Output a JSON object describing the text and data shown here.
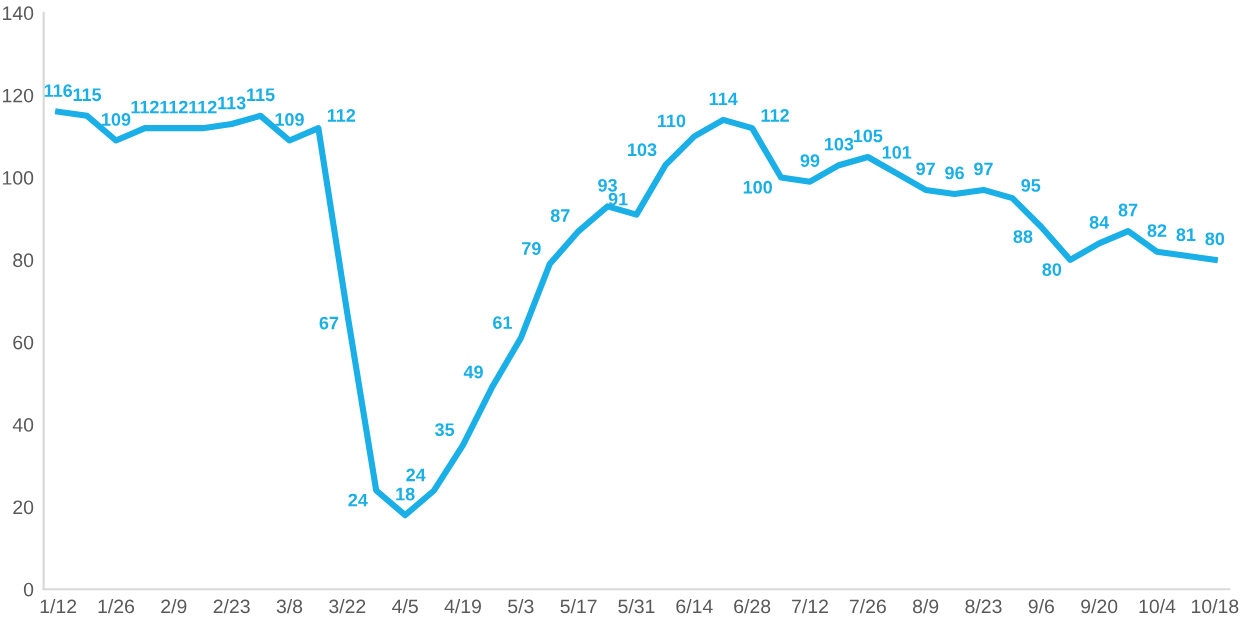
{
  "chart_data": {
    "type": "line",
    "categories": [
      "1/12",
      null,
      "1/26",
      null,
      "2/9",
      null,
      "2/23",
      null,
      "3/8",
      null,
      "3/22",
      null,
      "4/5",
      null,
      "4/19",
      null,
      "5/3",
      null,
      "5/17",
      null,
      "5/31",
      null,
      "6/14",
      null,
      "6/28",
      null,
      "7/12",
      null,
      "7/26",
      null,
      "8/9",
      null,
      "8/23",
      null,
      "9/6",
      null,
      "9/20",
      null,
      "10/4",
      null,
      "10/18"
    ],
    "series": [
      {
        "color": "#1aafe6",
        "values": [
          116,
          115,
          109,
          112,
          112,
          112,
          113,
          115,
          109,
          112,
          67,
          24,
          18,
          24,
          35,
          49,
          61,
          79,
          87,
          93,
          91,
          103,
          110,
          114,
          112,
          100,
          99,
          103,
          105,
          101,
          97,
          96,
          97,
          95,
          88,
          80,
          84,
          87,
          82,
          81,
          80
        ]
      }
    ],
    "ylim": [
      0,
      140
    ],
    "yticks": [
      0,
      20,
      40,
      60,
      80,
      100,
      120,
      140
    ],
    "grid": false,
    "data_labels": true,
    "marker": "none",
    "line_style": "solid"
  }
}
